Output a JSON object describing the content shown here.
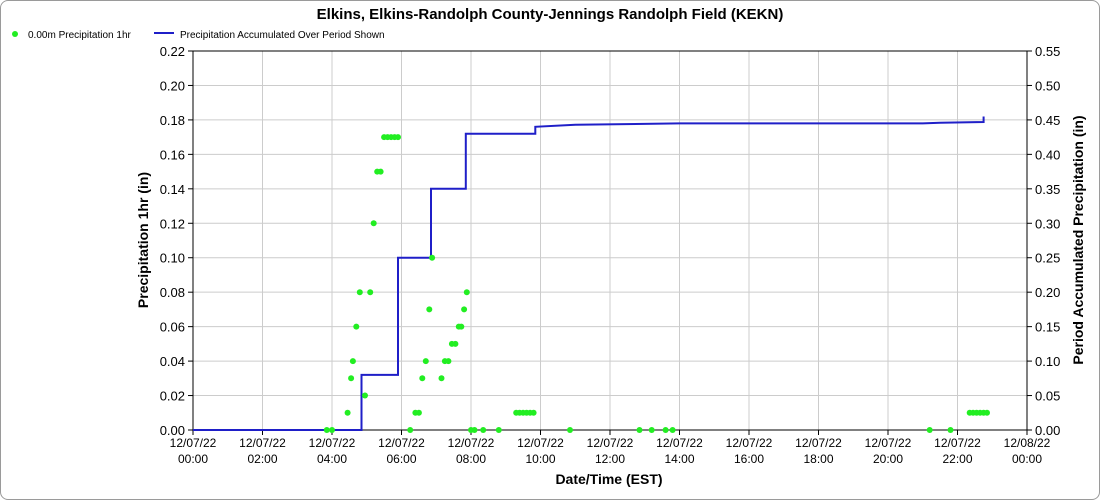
{
  "chart_data": {
    "type": "line",
    "title": "Elkins, Elkins-Randolph County-Jennings Randolph Field (KEKN)",
    "xlabel": "Date/Time (EST)",
    "ylabel_left": "Precipitation 1hr (in)",
    "ylabel_right": "Period Accumulated Precipitation (in)",
    "x_range_hours": [
      0,
      24
    ],
    "x_ticks": [
      {
        "h": 0,
        "l1": "12/07/22",
        "l2": "00:00"
      },
      {
        "h": 2,
        "l1": "12/07/22",
        "l2": "02:00"
      },
      {
        "h": 4,
        "l1": "12/07/22",
        "l2": "04:00"
      },
      {
        "h": 6,
        "l1": "12/07/22",
        "l2": "06:00"
      },
      {
        "h": 8,
        "l1": "12/07/22",
        "l2": "08:00"
      },
      {
        "h": 10,
        "l1": "12/07/22",
        "l2": "10:00"
      },
      {
        "h": 12,
        "l1": "12/07/22",
        "l2": "12:00"
      },
      {
        "h": 14,
        "l1": "12/07/22",
        "l2": "14:00"
      },
      {
        "h": 16,
        "l1": "12/07/22",
        "l2": "16:00"
      },
      {
        "h": 18,
        "l1": "12/07/22",
        "l2": "18:00"
      },
      {
        "h": 20,
        "l1": "12/07/22",
        "l2": "20:00"
      },
      {
        "h": 22,
        "l1": "12/07/22",
        "l2": "22:00"
      },
      {
        "h": 24,
        "l1": "12/08/22",
        "l2": "00:00"
      }
    ],
    "ylim_left": [
      0,
      0.22
    ],
    "y_ticks_left": [
      "0.00",
      "0.02",
      "0.04",
      "0.06",
      "0.08",
      "0.10",
      "0.12",
      "0.14",
      "0.16",
      "0.18",
      "0.20",
      "0.22"
    ],
    "ylim_right": [
      0,
      0.55
    ],
    "y_ticks_right": [
      "0.00",
      "0.05",
      "0.10",
      "0.15",
      "0.20",
      "0.25",
      "0.30",
      "0.35",
      "0.40",
      "0.45",
      "0.50",
      "0.55"
    ],
    "grid": true,
    "legend_position": "top-left",
    "series": [
      {
        "name": "0.00m Precipitation 1hr",
        "kind": "scatter",
        "axis": "left",
        "color": "#22ee22",
        "points": [
          [
            3.85,
            0.0
          ],
          [
            4.0,
            0.0
          ],
          [
            4.45,
            0.01
          ],
          [
            4.55,
            0.03
          ],
          [
            4.6,
            0.04
          ],
          [
            4.7,
            0.06
          ],
          [
            4.8,
            0.08
          ],
          [
            4.95,
            0.02
          ],
          [
            5.1,
            0.08
          ],
          [
            5.2,
            0.12
          ],
          [
            5.3,
            0.15
          ],
          [
            5.4,
            0.15
          ],
          [
            5.5,
            0.17
          ],
          [
            5.6,
            0.17
          ],
          [
            5.7,
            0.17
          ],
          [
            5.8,
            0.17
          ],
          [
            5.9,
            0.17
          ],
          [
            6.25,
            0.0
          ],
          [
            6.4,
            0.01
          ],
          [
            6.5,
            0.01
          ],
          [
            6.6,
            0.03
          ],
          [
            6.7,
            0.04
          ],
          [
            6.8,
            0.07
          ],
          [
            6.88,
            0.1
          ],
          [
            7.15,
            0.03
          ],
          [
            7.25,
            0.04
          ],
          [
            7.35,
            0.04
          ],
          [
            7.45,
            0.05
          ],
          [
            7.55,
            0.05
          ],
          [
            7.65,
            0.06
          ],
          [
            7.72,
            0.06
          ],
          [
            7.8,
            0.07
          ],
          [
            7.88,
            0.08
          ],
          [
            8.0,
            0.0
          ],
          [
            8.1,
            0.0
          ],
          [
            8.35,
            0.0
          ],
          [
            8.8,
            0.0
          ],
          [
            9.3,
            0.01
          ],
          [
            9.4,
            0.01
          ],
          [
            9.5,
            0.01
          ],
          [
            9.6,
            0.01
          ],
          [
            9.7,
            0.01
          ],
          [
            9.8,
            0.01
          ],
          [
            10.85,
            0.0
          ],
          [
            12.85,
            0.0
          ],
          [
            13.2,
            0.0
          ],
          [
            13.6,
            0.0
          ],
          [
            13.8,
            0.0
          ],
          [
            21.2,
            0.0
          ],
          [
            21.8,
            0.0
          ],
          [
            22.35,
            0.01
          ],
          [
            22.45,
            0.01
          ],
          [
            22.55,
            0.01
          ],
          [
            22.65,
            0.01
          ],
          [
            22.75,
            0.01
          ],
          [
            22.85,
            0.01
          ]
        ]
      },
      {
        "name": "Precipitation Accumulated Over Period Shown",
        "kind": "line",
        "axis": "right",
        "color": "#1f1fc8",
        "points": [
          [
            0,
            0
          ],
          [
            4.85,
            0
          ],
          [
            4.85,
            0.08
          ],
          [
            5.9,
            0.08
          ],
          [
            5.9,
            0.25
          ],
          [
            6.85,
            0.25
          ],
          [
            6.85,
            0.35
          ],
          [
            7.85,
            0.35
          ],
          [
            7.85,
            0.43
          ],
          [
            9.85,
            0.43
          ],
          [
            9.85,
            0.44
          ],
          [
            11,
            0.443
          ],
          [
            14,
            0.445
          ],
          [
            18,
            0.445
          ],
          [
            21,
            0.445
          ],
          [
            21.5,
            0.446
          ],
          [
            22.75,
            0.447
          ],
          [
            22.75,
            0.455
          ]
        ]
      }
    ]
  }
}
